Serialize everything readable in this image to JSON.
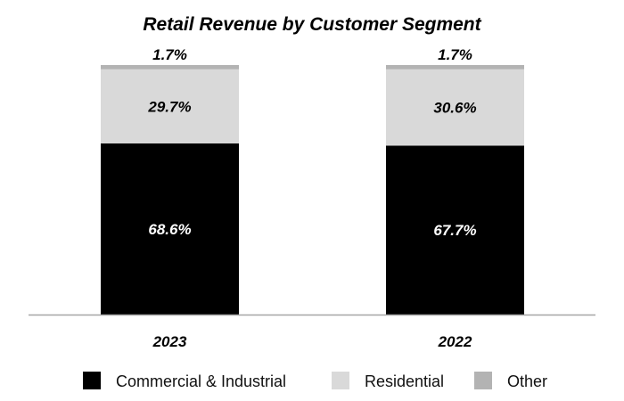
{
  "chart_data": {
    "type": "bar",
    "stacked": true,
    "title": "Retail Revenue by Customer Segment",
    "categories": [
      "2023",
      "2022"
    ],
    "series": [
      {
        "name": "Commercial & Industrial",
        "values": [
          68.6,
          67.7
        ],
        "labels": [
          "68.6%",
          "67.7%"
        ],
        "color": "#000000",
        "label_color": "#ffffff"
      },
      {
        "name": "Residential",
        "values": [
          29.7,
          30.6
        ],
        "labels": [
          "29.7%",
          "30.6%"
        ],
        "color": "#d9d9d9",
        "label_color": "#000000"
      },
      {
        "name": "Other",
        "values": [
          1.7,
          1.7
        ],
        "labels": [
          "1.7%",
          "1.7%"
        ],
        "color": "#b3b3b3",
        "label_color": "#000000"
      }
    ],
    "ylim": [
      0,
      100
    ],
    "xlabel": "",
    "ylabel": "",
    "grid": false,
    "legend_position": "bottom",
    "axis_color": "#a6a6a6"
  }
}
